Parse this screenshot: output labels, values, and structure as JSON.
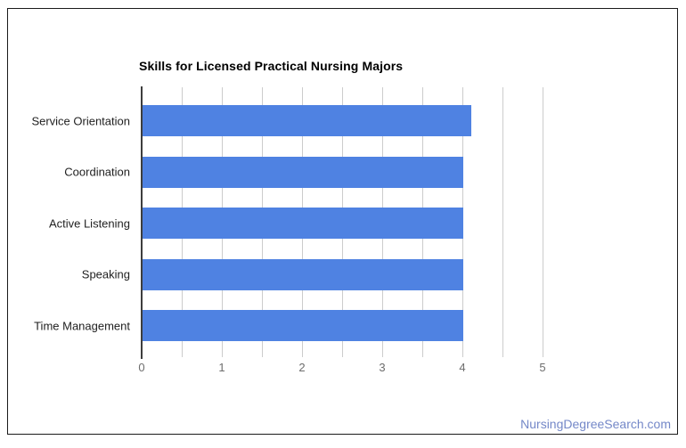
{
  "page": {
    "watermark": "NursingDegreeSearch.com"
  },
  "colors": {
    "bar": "#4f82e2",
    "gridline": "#cccccc",
    "zero_axis": "#3d3d3d",
    "tick_label": "#6d6d6d",
    "category_label": "#1f1f1f",
    "watermark": "#7488c8",
    "card_border": "#1b1b1b"
  },
  "chart_data": {
    "type": "bar",
    "orientation": "horizontal",
    "title": "Skills for Licensed Practical Nursing Majors",
    "categories": [
      "Service Orientation",
      "Coordination",
      "Active Listening",
      "Speaking",
      "Time Management"
    ],
    "values": [
      4.1,
      4,
      4,
      4,
      4
    ],
    "xlabel": "",
    "ylabel": "",
    "xlim": [
      0,
      5
    ],
    "x_ticks": [
      0,
      1,
      2,
      3,
      4,
      5
    ],
    "gridline_step": 0.5,
    "grid": "on",
    "legend": "none"
  }
}
